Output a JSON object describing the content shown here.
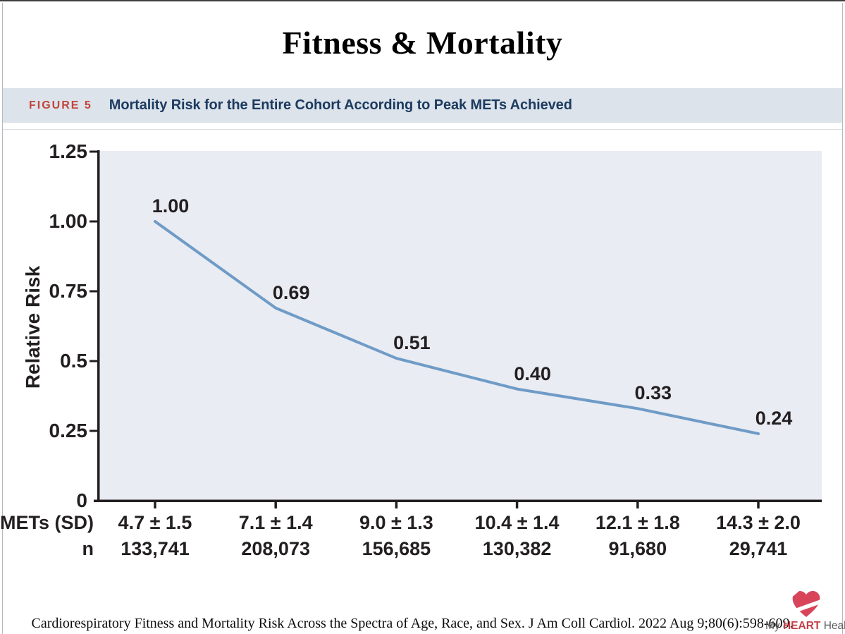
{
  "page": {
    "title": "Fitness & Mortality"
  },
  "figure_header": {
    "label": "FIGURE 5",
    "title": "Mortality Risk for the Entire Cohort According to Peak METs Achieved",
    "colors": {
      "bar_bg": "#dce3ea",
      "label": "#c2453b",
      "title": "#1d3b60"
    }
  },
  "chart_data": {
    "type": "line",
    "title": "Mortality Risk for the Entire Cohort According to Peak METs Achieved",
    "ylabel": "Relative Risk",
    "xlabel": "",
    "ylim": [
      0,
      1.25
    ],
    "grid": false,
    "legend": "none",
    "y_ticks": [
      {
        "label": "1.25",
        "value": 1.25
      },
      {
        "label": "1.00",
        "value": 1.0
      },
      {
        "label": "0.75",
        "value": 0.75
      },
      {
        "label": "0.5",
        "value": 0.5
      },
      {
        "label": "0.25",
        "value": 0.25
      },
      {
        "label": "0",
        "value": 0
      }
    ],
    "series": [
      {
        "name": "Relative Risk",
        "values": [
          1.0,
          0.69,
          0.51,
          0.4,
          0.33,
          0.24
        ],
        "point_labels": [
          "1.00",
          "0.69",
          "0.51",
          "0.40",
          "0.33",
          "0.24"
        ]
      }
    ],
    "x_axis_rows": [
      {
        "label": "METs (SD)",
        "values": [
          "4.7 ± 1.5",
          "7.1 ± 1.4",
          "9.0 ± 1.3",
          "10.4 ± 1.4",
          "12.1 ± 1.8",
          "14.3 ± 2.0"
        ]
      },
      {
        "label": "n",
        "values": [
          "133,741",
          "208,073",
          "156,685",
          "130,382",
          "91,680",
          "29,741"
        ]
      }
    ],
    "colors": {
      "line": "#6f9bc7",
      "plot_bg": "#e9ecf2",
      "axis": "#231f20",
      "text": "#231f20"
    }
  },
  "footer": {
    "citation": "Cardiorespiratory Fitness and Mortality Risk Across the Spectra of Age, Race, and Sex. J Am Coll Cardiol. 2022 Aug 9;80(6):598-609.",
    "logo": {
      "word1": "My",
      "word2": "HEART",
      "word3": "Health",
      "colors": {
        "heart": "#d8455b",
        "accent": "#c4404a",
        "gray": "#5a5a5c"
      }
    }
  }
}
